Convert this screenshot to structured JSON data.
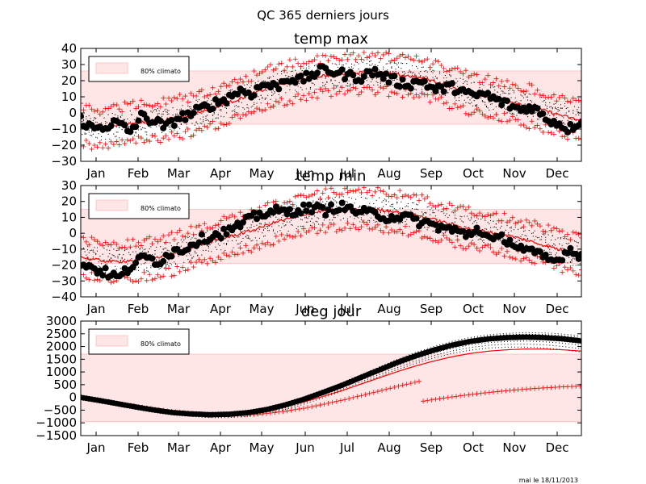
{
  "figure": {
    "suptitle": "QC 365 derniers jours",
    "footer": "mai le 18/11/2013"
  },
  "colors": {
    "band_fill": "#ffe6e6",
    "band_edge": "#ffc4c4",
    "climato_line": "#ff0000",
    "markers_plus": "#ff0000",
    "observed": "#000000"
  },
  "chart_data": [
    {
      "type": "scatter",
      "title": "temp max",
      "legend_label": "80% climato",
      "legend_position": "upper-left",
      "x_ticks": [
        "Jan",
        "Feb",
        "Mar",
        "Apr",
        "May",
        "Jun",
        "Jul",
        "Aug",
        "Sep",
        "Oct",
        "Nov",
        "Dec"
      ],
      "x_range": [
        "Jan",
        "Dec"
      ],
      "ylim": [
        -30,
        40
      ],
      "y_ticks": [
        -30,
        -20,
        -10,
        0,
        10,
        20,
        30,
        40
      ],
      "band": [
        -7,
        26
      ],
      "climato_mean": [
        -8,
        -9,
        -8,
        -6,
        -6,
        -4,
        -2,
        1,
        4,
        8,
        12,
        16,
        19,
        21,
        23,
        24,
        25,
        25,
        24,
        23,
        21,
        18,
        14,
        11,
        9,
        7,
        4,
        1,
        -2,
        -5
      ],
      "observed": [
        -4,
        -10,
        -8,
        -6,
        -12,
        -2,
        -5,
        -9,
        -3,
        -1,
        3,
        6,
        9,
        14,
        12,
        18,
        16,
        22,
        20,
        24,
        27,
        25,
        23,
        22,
        26,
        22,
        19,
        18,
        20,
        14,
        16,
        15,
        10,
        12,
        8,
        5,
        2,
        4,
        -3,
        -6,
        -10,
        -4
      ]
    },
    {
      "type": "scatter",
      "title": "temp min",
      "legend_label": "80% climato",
      "legend_position": "upper-left",
      "x_ticks": [
        "Jan",
        "Feb",
        "Mar",
        "Apr",
        "May",
        "Jun",
        "Jul",
        "Aug",
        "Sep",
        "Oct",
        "Nov",
        "Dec"
      ],
      "x_range": [
        "Jan",
        "Dec"
      ],
      "ylim": [
        -40,
        30
      ],
      "y_ticks": [
        -40,
        -30,
        -20,
        -10,
        0,
        10,
        20,
        30
      ],
      "band": [
        -19,
        15
      ],
      "climato_mean": [
        -15,
        -17,
        -18,
        -17,
        -16,
        -14,
        -11,
        -7,
        -4,
        -1,
        2,
        6,
        9,
        12,
        14,
        15,
        15,
        15,
        14,
        12,
        10,
        7,
        4,
        2,
        0,
        -2,
        -5,
        -8,
        -11,
        -14
      ],
      "observed": [
        -18,
        -22,
        -25,
        -28,
        -20,
        -15,
        -18,
        -12,
        -10,
        -5,
        -2,
        0,
        3,
        8,
        12,
        14,
        13,
        15,
        16,
        14,
        17,
        15,
        13,
        12,
        10,
        11,
        8,
        6,
        4,
        2,
        -1,
        3,
        -5,
        -3,
        -8,
        -12,
        -15,
        -18,
        -10,
        -14
      ]
    },
    {
      "type": "scatter",
      "title": "deg jour",
      "legend_label": "80% climato",
      "legend_position": "upper-left",
      "x_ticks": [
        "Jan",
        "Feb",
        "Mar",
        "Apr",
        "May",
        "Jun",
        "Jul",
        "Aug",
        "Sep",
        "Oct",
        "Nov",
        "Dec"
      ],
      "x_range": [
        "Jan",
        "Dec"
      ],
      "ylim": [
        -1500,
        3000
      ],
      "y_ticks": [
        -1500,
        -1000,
        -500,
        0,
        500,
        1000,
        1500,
        2000,
        2500,
        3000
      ],
      "band": [
        -950,
        1700
      ],
      "observed_cumulative": [
        0,
        -120,
        -250,
        -380,
        -500,
        -600,
        -650,
        -680,
        -660,
        -600,
        -480,
        -300,
        -80,
        180,
        450,
        750,
        1050,
        1350,
        1620,
        1850,
        2050,
        2200,
        2300,
        2350,
        2370,
        2350,
        2300,
        2220
      ]
    }
  ]
}
